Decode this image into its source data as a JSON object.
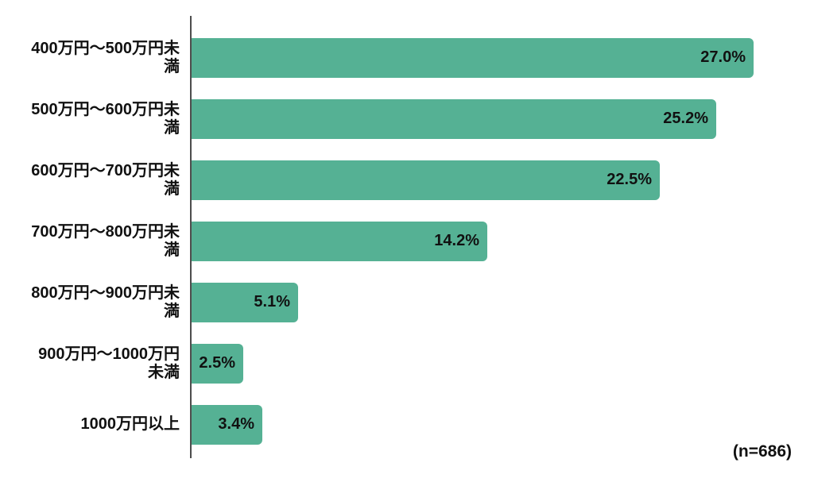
{
  "chart_data": {
    "type": "bar",
    "orientation": "horizontal",
    "title": "",
    "xlabel": "",
    "ylabel": "",
    "xlim": [
      0,
      30
    ],
    "grid": false,
    "legend": false,
    "categories": [
      "400万円〜500万円未\n満",
      "500万円〜600万円未\n満",
      "600万円〜700万円未\n満",
      "700万円〜800万円未\n満",
      "800万円〜900万円未\n満",
      "900万円〜1000万円\n未満",
      "1000万円以上"
    ],
    "values": [
      27.0,
      25.2,
      22.5,
      14.2,
      5.1,
      2.5,
      3.4
    ],
    "value_labels": [
      "27.0%",
      "25.2%",
      "22.5%",
      "14.2%",
      "5.1%",
      "2.5%",
      "3.4%"
    ],
    "annotation": "(n=686)",
    "bar_color": "#55B194",
    "text_color": "#111111",
    "axis_color": "#4d4d4d"
  }
}
